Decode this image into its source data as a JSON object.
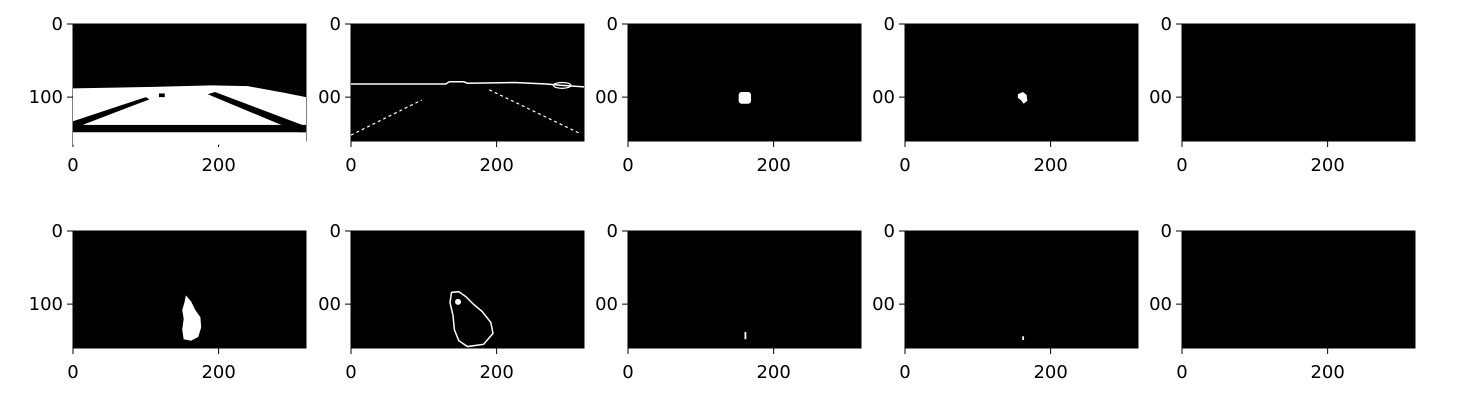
{
  "figure": {
    "background": "#ffffff",
    "image_background": "#000000",
    "foreground": "#ffffff"
  },
  "axes": {
    "x_tick_labels": [
      "0",
      "200"
    ],
    "y_tick_labels": [
      "0",
      "100"
    ],
    "y_tick_labels_clipped": [
      "0",
      "00"
    ]
  },
  "chart_data": {
    "type": "image-grid",
    "rows": 2,
    "cols": 5,
    "xlim": [
      0,
      320
    ],
    "ylim": [
      160,
      0
    ],
    "panels": [
      {
        "row": 0,
        "col": 0,
        "content": "binary mask: road region with two lane stripes"
      },
      {
        "row": 0,
        "col": 1,
        "content": "edge outline: horizon line and two dashed lane lines"
      },
      {
        "row": 0,
        "col": 2,
        "content": "single filled blob near x=160, y=100"
      },
      {
        "row": 0,
        "col": 3,
        "content": "small irregular blob near x=160, y=100"
      },
      {
        "row": 0,
        "col": 4,
        "content": "empty"
      },
      {
        "row": 1,
        "col": 0,
        "content": "filled vertical blob near x=160, y=90-150"
      },
      {
        "row": 1,
        "col": 1,
        "content": "outline of vertical blob near x=140-195, y=85-155"
      },
      {
        "row": 1,
        "col": 2,
        "content": "tiny vertical tick near x=162, y=145"
      },
      {
        "row": 1,
        "col": 3,
        "content": "tiny dot near x=163, y=147"
      },
      {
        "row": 1,
        "col": 4,
        "content": "empty"
      }
    ]
  }
}
